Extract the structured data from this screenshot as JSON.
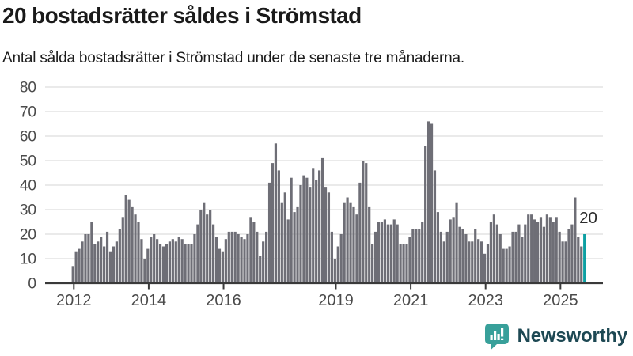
{
  "header": {
    "title": "20 bostadsrätter såldes i Strömstad",
    "subtitle": "Antal sålda bostadsrätter i Strömstad under de senaste tre månaderna."
  },
  "chart_data": {
    "type": "bar",
    "title": "20 bostadsrätter såldes i Strömstad",
    "subtitle": "Antal sålda bostadsrätter i Strömstad under de senaste tre månaderna.",
    "bar_period": "month",
    "x_start": "2012-01",
    "x_end": "2025-09",
    "x_tick_labels": [
      "2012",
      "2014",
      "2016",
      "2019",
      "2021",
      "2023",
      "2025"
    ],
    "y_ticks": [
      0,
      10,
      20,
      30,
      40,
      50,
      60,
      70,
      80
    ],
    "ylim": [
      0,
      80
    ],
    "grid": true,
    "bar_color": "#6e6e76",
    "values": [
      7,
      13,
      14,
      17,
      20,
      20,
      25,
      16,
      17,
      19,
      15,
      21,
      13,
      15,
      17,
      22,
      27,
      36,
      34,
      31,
      28,
      25,
      18,
      10,
      14,
      19,
      20,
      18,
      16,
      15,
      16,
      17,
      18,
      17,
      19,
      18,
      16,
      16,
      16,
      20,
      24,
      30,
      33,
      28,
      30,
      24,
      19,
      14,
      13,
      18,
      21,
      21,
      21,
      20,
      19,
      18,
      20,
      27,
      25,
      21,
      11,
      17,
      21,
      41,
      49,
      57,
      46,
      33,
      37,
      26,
      43,
      29,
      31,
      40,
      44,
      43,
      39,
      47,
      42,
      46,
      51,
      39,
      37,
      21,
      10,
      15,
      20,
      33,
      35,
      33,
      31,
      28,
      41,
      50,
      49,
      31,
      16,
      21,
      25,
      25,
      26,
      24,
      24,
      26,
      24,
      16,
      16,
      16,
      19,
      22,
      22,
      22,
      25,
      56,
      66,
      65,
      46,
      29,
      21,
      17,
      21,
      26,
      27,
      33,
      23,
      22,
      20,
      17,
      17,
      22,
      18,
      17,
      12,
      16,
      25,
      28,
      24,
      20,
      14,
      14,
      15,
      21,
      21,
      24,
      19,
      24,
      28,
      28,
      26,
      25,
      27,
      23,
      28,
      27,
      25,
      27,
      21,
      17,
      17,
      22,
      24,
      35,
      19,
      15,
      20
    ],
    "highlight": {
      "index": 164,
      "value": 20,
      "label": "20",
      "color": "#0d9fa2"
    }
  },
  "footer": {
    "brand": "Newsworthy"
  },
  "colors": {
    "background": "#ffffff",
    "grid": "#e4e4e4",
    "axis_line": "#3a3a3a",
    "axis_text": "#4b4b4b",
    "title": "#1a1a1a",
    "value_label": "#2b2b2b",
    "logo_icon": "#38a09a",
    "logo_text": "#1d4853"
  }
}
